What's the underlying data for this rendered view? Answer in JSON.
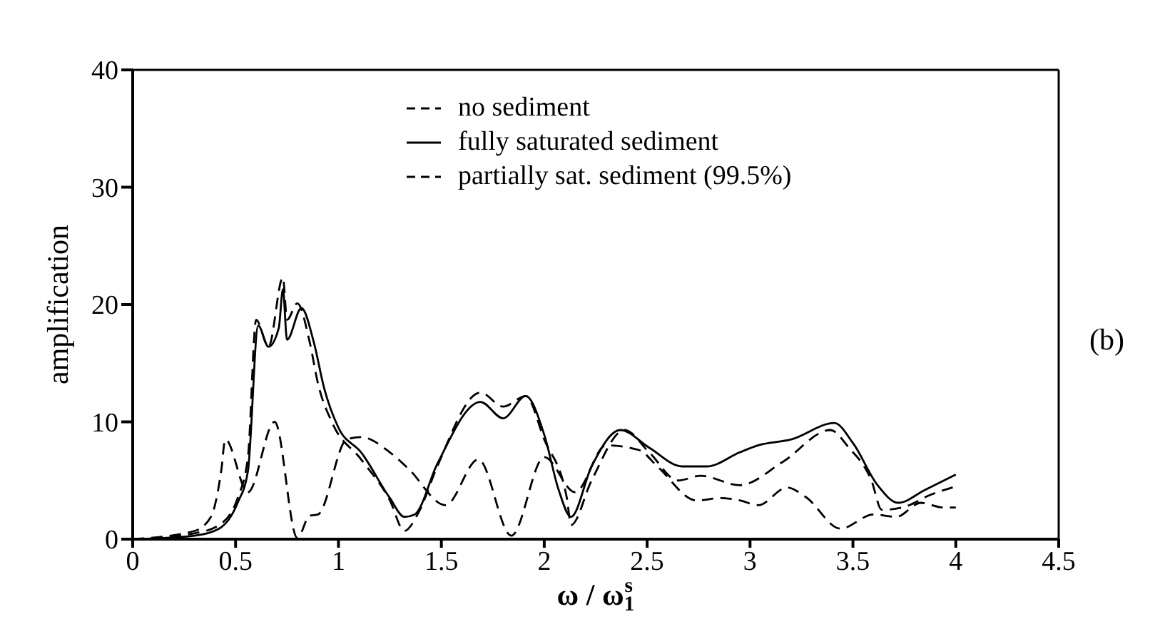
{
  "chart_data": {
    "type": "line",
    "xlabel": "ω / ω$_{1}$$^{s}$",
    "ylabel": "amplification",
    "annotations": [
      "(b)"
    ],
    "xlim": [
      0,
      4.5
    ],
    "xticks": [
      0,
      0.5,
      1,
      1.5,
      2,
      2.5,
      3,
      3.5,
      4,
      4.5
    ],
    "ylim": [
      0,
      40
    ],
    "yticks": [
      0,
      10,
      20,
      30,
      40
    ],
    "grid": false,
    "legend": "top",
    "marker": "none",
    "series": [
      {
        "name": "no sediment",
        "color": "#000000",
        "line_style": "dashed",
        "x": [
          0,
          0.3,
          0.42,
          0.51,
          0.56,
          0.6,
          0.66,
          0.73,
          0.75,
          0.8,
          0.86,
          0.9,
          0.97,
          1.11,
          1.25,
          1.32,
          1.39,
          1.48,
          1.69,
          1.8,
          1.91,
          2.0,
          2.11,
          2.13,
          2.23,
          2.39,
          2.51,
          2.65,
          2.76,
          2.95,
          3.16,
          3.39,
          3.48,
          3.59,
          3.64,
          3.74,
          3.88,
          4.0
        ],
        "values": [
          0,
          0.5,
          1.2,
          3.5,
          7,
          18.7,
          16.4,
          22.3,
          18.7,
          20.1,
          16.8,
          13.3,
          9.9,
          6.8,
          3.3,
          0.7,
          2.3,
          6.2,
          12.5,
          11.3,
          12.2,
          8.5,
          3.5,
          1.2,
          5.0,
          9.3,
          7.4,
          5.0,
          5.4,
          4.6,
          6.6,
          9.3,
          7.8,
          5.0,
          2.5,
          2.7,
          3.8,
          4.5
        ]
      },
      {
        "name": "fully saturated sediment",
        "color": "#000000",
        "line_style": "solid",
        "x": [
          0,
          0.3,
          0.42,
          0.51,
          0.56,
          0.61,
          0.66,
          0.71,
          0.73,
          0.75,
          0.82,
          0.88,
          0.93,
          1.0,
          1.11,
          1.25,
          1.32,
          1.37,
          1.48,
          1.69,
          1.8,
          1.91,
          2.0,
          2.07,
          2.13,
          2.23,
          2.37,
          2.51,
          2.67,
          2.79,
          2.95,
          3.04,
          3.2,
          3.41,
          3.5,
          3.62,
          3.72,
          3.85,
          4.0
        ],
        "values": [
          0,
          0.3,
          0.9,
          3.1,
          5.8,
          18.2,
          16.4,
          18.0,
          21.3,
          17.0,
          19.7,
          16.8,
          12.9,
          9.5,
          7.4,
          3.5,
          1.9,
          2.1,
          6.4,
          11.7,
          10.3,
          12.2,
          8.9,
          4.2,
          1.9,
          6.2,
          9.3,
          7.8,
          6.2,
          6.2,
          7.4,
          8.0,
          8.5,
          9.9,
          8.2,
          4.6,
          3.1,
          4.2,
          5.5
        ]
      },
      {
        "name": "partially sat. sediment (99.5%)",
        "color": "#000000",
        "line_style": "dashed",
        "x": [
          0,
          0.3,
          0.38,
          0.43,
          0.45,
          0.56,
          0.69,
          0.8,
          0.86,
          0.9,
          1.04,
          1.11,
          1.25,
          1.34,
          1.52,
          1.68,
          1.84,
          2.0,
          2.15,
          2.3,
          2.46,
          2.55,
          2.74,
          2.86,
          2.95,
          3.04,
          3.18,
          3.27,
          3.44,
          3.6,
          3.71,
          3.83,
          3.94,
          4.0
        ],
        "values": [
          0,
          0.7,
          1.9,
          5.8,
          8.5,
          4.0,
          10.0,
          0.1,
          2.0,
          2.1,
          8.5,
          8.7,
          7.4,
          6.0,
          2.9,
          6.8,
          0.3,
          7.0,
          4.0,
          8.0,
          7.6,
          6.2,
          3.3,
          3.5,
          3.3,
          2.9,
          4.4,
          3.6,
          0.9,
          2.1,
          1.9,
          3.1,
          2.7,
          2.7
        ]
      }
    ]
  }
}
